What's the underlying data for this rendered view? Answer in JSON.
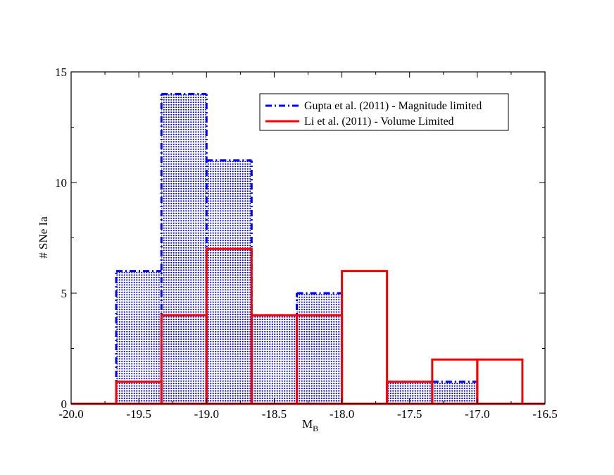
{
  "chart_data": {
    "type": "histogram",
    "xlabel": "M",
    "xlabel_sub": "B",
    "ylabel": "# SNe Ia",
    "xlim": [
      -20.0,
      -16.5
    ],
    "ylim": [
      0,
      15
    ],
    "x_ticks": [
      -20.0,
      -19.5,
      -19.0,
      -18.5,
      -18.0,
      -17.5,
      -17.0,
      -16.5
    ],
    "x_tick_labels": [
      "-20.0",
      "-19.5",
      "-19.0",
      "-18.5",
      "-18.0",
      "-17.5",
      "-17.0",
      "-16.5"
    ],
    "y_ticks": [
      0,
      5,
      10,
      15
    ],
    "y_tick_labels": [
      "0",
      "5",
      "10",
      "15"
    ],
    "grid": false,
    "legend_position": "top-right",
    "bin_edges": [
      -20.0,
      -19.667,
      -19.333,
      -19.0,
      -18.667,
      -18.333,
      -18.0,
      -17.667,
      -17.333,
      -17.0,
      -16.667,
      -16.5
    ],
    "series": [
      {
        "name": "Gupta et al. (2011) - Magnitude limited",
        "color": "#0000ff",
        "line_style": "dash-dot",
        "fill": "dotted",
        "values": [
          0,
          6,
          14,
          11,
          4,
          5,
          0,
          1,
          1,
          0,
          0
        ]
      },
      {
        "name": "Li et al. (2011) - Volume Limited",
        "color": "#ff0000",
        "line_style": "solid",
        "fill": "none",
        "values": [
          0,
          1,
          4,
          7,
          4,
          4,
          6,
          1,
          2,
          2,
          0
        ]
      }
    ]
  }
}
